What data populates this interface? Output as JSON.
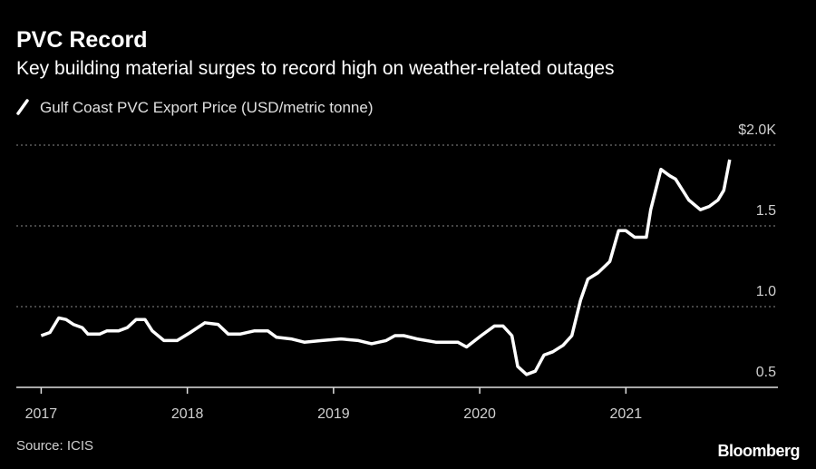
{
  "chart_data": {
    "type": "line",
    "title": "PVC Record",
    "subtitle": "Key building material surges to record high on weather-related outages",
    "source": "Source: ICIS",
    "brand": "Bloomberg",
    "x": [
      2017.0,
      2017.06,
      2017.12,
      2017.17,
      2017.22,
      2017.28,
      2017.32,
      2017.4,
      2017.45,
      2017.53,
      2017.59,
      2017.65,
      2017.71,
      2017.76,
      2017.84,
      2017.93,
      2018.02,
      2018.12,
      2018.21,
      2018.28,
      2018.36,
      2018.46,
      2018.55,
      2018.61,
      2018.71,
      2018.8,
      2018.92,
      2019.05,
      2019.17,
      2019.26,
      2019.36,
      2019.42,
      2019.48,
      2019.57,
      2019.7,
      2019.85,
      2019.91,
      2020.01,
      2020.1,
      2020.16,
      2020.22,
      2020.26,
      2020.32,
      2020.38,
      2020.44,
      2020.5,
      2020.57,
      2020.63,
      2020.69,
      2020.74,
      2020.81,
      2020.89,
      2020.95,
      2021.0,
      2021.06,
      2021.14,
      2021.17,
      2021.24,
      2021.3,
      2021.34,
      2021.43,
      2021.51,
      2021.57,
      2021.63,
      2021.67,
      2021.71
    ],
    "series": [
      {
        "name": "Gulf Coast PVC Export Price (USD/metric tonne)",
        "color": "#ffffff",
        "values": [
          0.82,
          0.84,
          0.93,
          0.92,
          0.89,
          0.87,
          0.83,
          0.83,
          0.85,
          0.85,
          0.87,
          0.92,
          0.92,
          0.85,
          0.79,
          0.79,
          0.84,
          0.9,
          0.89,
          0.83,
          0.83,
          0.85,
          0.85,
          0.81,
          0.8,
          0.78,
          0.79,
          0.8,
          0.79,
          0.77,
          0.79,
          0.82,
          0.82,
          0.8,
          0.78,
          0.78,
          0.75,
          0.82,
          0.88,
          0.88,
          0.82,
          0.63,
          0.58,
          0.6,
          0.7,
          0.72,
          0.76,
          0.82,
          1.04,
          1.17,
          1.21,
          1.28,
          1.47,
          1.47,
          1.43,
          1.43,
          1.6,
          1.85,
          1.81,
          1.79,
          1.66,
          1.6,
          1.62,
          1.66,
          1.72,
          1.91
        ]
      }
    ],
    "xlim": [
      2016.83,
      2022.04
    ],
    "xticks": [
      2017,
      2018,
      2019,
      2020,
      2021
    ],
    "ylim": [
      0.5,
      2.0
    ],
    "yticks": [
      0.5,
      {
        "value": 1,
        "label": "1.0"
      },
      1.5,
      {
        "value": 2,
        "label": "$2.0K"
      }
    ],
    "grid": true
  }
}
